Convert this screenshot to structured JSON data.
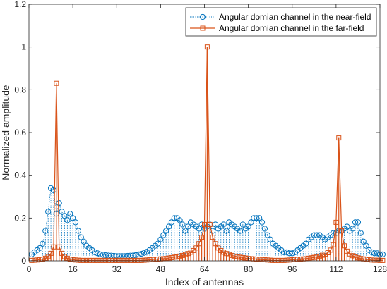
{
  "chart_data": {
    "type": "line",
    "title": "",
    "xlabel": "Index of antennas",
    "ylabel": "Normalized amplitude",
    "xlim": [
      0,
      128
    ],
    "ylim": [
      0,
      1.2
    ],
    "xticks": [
      0,
      16,
      32,
      48,
      64,
      80,
      96,
      112,
      128
    ],
    "yticks": [
      0,
      0.2,
      0.4,
      0.6,
      0.8,
      1,
      1.2
    ],
    "grid": false,
    "legend_position": "top-right",
    "colors": {
      "near": "#0072BD",
      "far": "#D95319"
    },
    "series": [
      {
        "name": "Angular domian channel in the near-field",
        "style": "stem-dotted-circle",
        "values": [
          0.03,
          0.04,
          0.05,
          0.06,
          0.08,
          0.14,
          0.23,
          0.34,
          0.33,
          0.22,
          0.27,
          0.23,
          0.21,
          0.19,
          0.22,
          0.2,
          0.18,
          0.14,
          0.11,
          0.09,
          0.07,
          0.06,
          0.05,
          0.04,
          0.035,
          0.03,
          0.028,
          0.026,
          0.025,
          0.024,
          0.023,
          0.022,
          0.022,
          0.022,
          0.022,
          0.023,
          0.024,
          0.025,
          0.027,
          0.03,
          0.033,
          0.037,
          0.042,
          0.05,
          0.06,
          0.07,
          0.08,
          0.1,
          0.12,
          0.14,
          0.16,
          0.18,
          0.2,
          0.2,
          0.19,
          0.17,
          0.14,
          0.16,
          0.18,
          0.17,
          0.16,
          0.15,
          0.17,
          0.15,
          0.16,
          0.17,
          0.14,
          0.17,
          0.15,
          0.16,
          0.17,
          0.14,
          0.18,
          0.17,
          0.16,
          0.15,
          0.14,
          0.17,
          0.15,
          0.16,
          0.18,
          0.2,
          0.2,
          0.2,
          0.18,
          0.15,
          0.12,
          0.1,
          0.08,
          0.07,
          0.06,
          0.05,
          0.04,
          0.04,
          0.035,
          0.035,
          0.04,
          0.05,
          0.06,
          0.07,
          0.08,
          0.1,
          0.11,
          0.12,
          0.12,
          0.12,
          0.11,
          0.1,
          0.11,
          0.12,
          0.13,
          0.13,
          0.14,
          0.14,
          0.15,
          0.16,
          0.14,
          0.15,
          0.18,
          0.18,
          0.13,
          0.09,
          0.07,
          0.05,
          0.04,
          0.035,
          0.035,
          0.03,
          0.03
        ]
      },
      {
        "name": "Angular domian channel in the far-field",
        "style": "stem-solid-square",
        "values": [
          0.002,
          0.003,
          0.004,
          0.006,
          0.008,
          0.012,
          0.02,
          0.035,
          0.065,
          0.83,
          0.065,
          0.035,
          0.02,
          0.012,
          0.008,
          0.006,
          0.004,
          0.003,
          0.002,
          0.002,
          0.002,
          0.002,
          0.002,
          0.002,
          0.002,
          0.002,
          0.002,
          0.002,
          0.002,
          0.002,
          0.002,
          0.002,
          0.002,
          0.002,
          0.002,
          0.002,
          0.002,
          0.002,
          0.002,
          0.002,
          0.002,
          0.003,
          0.004,
          0.005,
          0.006,
          0.007,
          0.008,
          0.009,
          0.01,
          0.011,
          0.013,
          0.015,
          0.017,
          0.019,
          0.022,
          0.025,
          0.029,
          0.034,
          0.04,
          0.048,
          0.06,
          0.08,
          0.11,
          0.17,
          1.0,
          0.17,
          0.11,
          0.08,
          0.06,
          0.048,
          0.04,
          0.034,
          0.029,
          0.025,
          0.022,
          0.019,
          0.017,
          0.015,
          0.013,
          0.011,
          0.01,
          0.009,
          0.008,
          0.007,
          0.006,
          0.005,
          0.004,
          0.003,
          0.002,
          0.002,
          0.002,
          0.002,
          0.002,
          0.003,
          0.004,
          0.005,
          0.006,
          0.007,
          0.008,
          0.009,
          0.01,
          0.012,
          0.014,
          0.016,
          0.019,
          0.022,
          0.026,
          0.031,
          0.038,
          0.05,
          0.075,
          0.18,
          0.575,
          0.14,
          0.07,
          0.045,
          0.032,
          0.024,
          0.018,
          0.014,
          0.011,
          0.009,
          0.007,
          0.005,
          0.004,
          0.003,
          0.003,
          0.002,
          0.002
        ]
      }
    ]
  }
}
